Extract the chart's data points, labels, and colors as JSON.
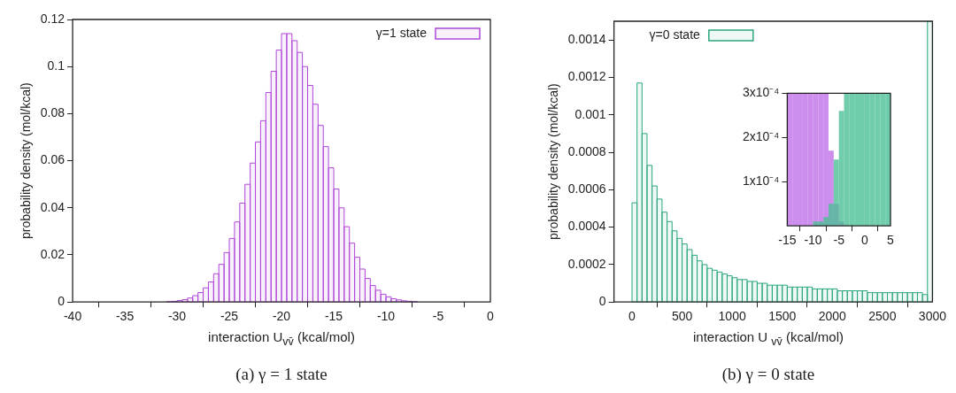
{
  "chart_data": [
    {
      "type": "histogram",
      "title": "(a) γ = 1 state",
      "xlabel": "interaction U$_{vv̄}$ (kcal/mol)",
      "ylabel": "probability density (mol/kcal)",
      "legend": "top right",
      "grid": false,
      "bins": [
        -31,
        -30.5,
        -30,
        -29.5,
        -29,
        -28.5,
        -28,
        -27.5,
        -27,
        -26.5,
        -26,
        -25.5,
        -25,
        -24.5,
        -24,
        -23.5,
        -23,
        -22.5,
        -22,
        -21.5,
        -21,
        -20.5,
        -20,
        -19.5,
        -19,
        -18.5,
        -18,
        -17.5,
        -17,
        -16.5,
        -16,
        -15.5,
        -15,
        -14.5,
        -14,
        -13.5,
        -13,
        -12.5,
        -12,
        -11.5,
        -11,
        -10.5,
        -10,
        -9.5,
        -9,
        -8.5,
        -8,
        -7.5,
        -7
      ],
      "series": [
        {
          "name": "γ=1 state",
          "color": "#b048d8",
          "values": [
            0.0001,
            0.0003,
            0.0006,
            0.001,
            0.0017,
            0.0027,
            0.004,
            0.006,
            0.0085,
            0.012,
            0.016,
            0.021,
            0.027,
            0.034,
            0.042,
            0.05,
            0.059,
            0.068,
            0.077,
            0.089,
            0.098,
            0.107,
            0.114,
            0.114,
            0.111,
            0.106,
            0.1,
            0.092,
            0.084,
            0.075,
            0.066,
            0.057,
            0.048,
            0.04,
            0.032,
            0.025,
            0.019,
            0.014,
            0.01,
            0.007,
            0.005,
            0.0033,
            0.0022,
            0.0014,
            0.0009,
            0.0005,
            0.0003,
            0.0001
          ]
        }
      ],
      "xlim": [
        -40,
        0
      ],
      "xticks": [
        -40,
        -35,
        -30,
        -25,
        -20,
        -15,
        -10,
        -5,
        0
      ],
      "ylim": [
        0,
        0.12
      ],
      "yticks": [
        0,
        0.02,
        0.04,
        0.06,
        0.08,
        0.1,
        0.12
      ]
    },
    {
      "type": "histogram",
      "title": "(b) γ = 0 state",
      "xlabel": "interaction U $_{vv̄}$ (kcal/mol)",
      "ylabel": "probability density (mol/kcal)",
      "legend": "top left",
      "grid": false,
      "bins": [
        0,
        50,
        100,
        150,
        200,
        250,
        300,
        350,
        400,
        450,
        500,
        550,
        600,
        650,
        700,
        750,
        800,
        850,
        900,
        950,
        1000,
        1050,
        1100,
        1150,
        1200,
        1250,
        1300,
        1350,
        1400,
        1450,
        1500,
        1550,
        1600,
        1650,
        1700,
        1750,
        1800,
        1850,
        1900,
        1950,
        2000,
        2050,
        2100,
        2150,
        2200,
        2250,
        2300,
        2350,
        2400,
        2450,
        2500,
        2550,
        2600,
        2650,
        2700,
        2750,
        2800,
        2850,
        2900,
        2950,
        3000
      ],
      "series": [
        {
          "name": "γ=0 state",
          "color": "#2aa57f",
          "values": [
            0.00053,
            0.00117,
            0.0009,
            0.00073,
            0.00062,
            0.00055,
            0.00048,
            0.00043,
            0.00038,
            0.00034,
            0.00031,
            0.00028,
            0.00025,
            0.00022,
            0.0002,
            0.00018,
            0.00017,
            0.00016,
            0.00015,
            0.00014,
            0.00013,
            0.00012,
            0.00012,
            0.00011,
            0.00011,
            0.0001,
            0.0001,
            9e-05,
            9e-05,
            9e-05,
            9e-05,
            8e-05,
            8e-05,
            8e-05,
            8e-05,
            8e-05,
            7e-05,
            7e-05,
            7e-05,
            7e-05,
            7e-05,
            6e-05,
            6e-05,
            6e-05,
            6e-05,
            6e-05,
            6e-05,
            5e-05,
            5e-05,
            5e-05,
            5e-05,
            5e-05,
            5e-05,
            5e-05,
            5e-05,
            5e-05,
            5e-05,
            5e-05,
            4e-05,
            0.0015
          ]
        }
      ],
      "xlim": [
        -180,
        3000
      ],
      "xticks": [
        0,
        500,
        1000,
        1500,
        2000,
        2500,
        3000
      ],
      "ylim": [
        0,
        0.0015
      ],
      "yticks": [
        0,
        0.0002,
        0.0004,
        0.0006,
        0.0008,
        0.001,
        0.0012,
        0.0014
      ]
    },
    {
      "type": "histogram",
      "grid": false,
      "bins": [
        -15,
        -14,
        -13,
        -12,
        -11,
        -10,
        -9,
        -8,
        -7,
        -6,
        -5,
        -4,
        -3,
        -2,
        -1,
        0,
        1,
        2,
        3,
        4,
        5
      ],
      "series": [
        {
          "color": "#c070e8",
          "values": [
            0.0003,
            0.0003,
            0.0003,
            0.0003,
            0.0003,
            0.0003,
            0.0003,
            0.0003,
            0.00017,
            5e-05,
            1e-05,
            0,
            0,
            0,
            0,
            0,
            0,
            0,
            0,
            0
          ]
        },
        {
          "color": "#4cc096",
          "values": [
            0,
            0,
            0,
            0,
            0,
            1e-05,
            1e-05,
            2e-05,
            5e-05,
            0.00015,
            0.00026,
            0.0003,
            0.0003,
            0.0003,
            0.0003,
            0.0003,
            0.0003,
            0.0003,
            0.0003,
            0.0003
          ]
        }
      ],
      "xlim": [
        -15,
        5
      ],
      "xticks": [
        -15,
        -10,
        -5,
        0,
        5
      ],
      "ylim": [
        0,
        0.0003
      ],
      "yticks": [
        {
          "value": 0.0001,
          "label": "1x10⁻⁴"
        },
        {
          "value": 0.0002,
          "label": "2x10⁻⁴"
        },
        {
          "value": 0.0003,
          "label": "3x10⁻⁴"
        }
      ]
    }
  ]
}
